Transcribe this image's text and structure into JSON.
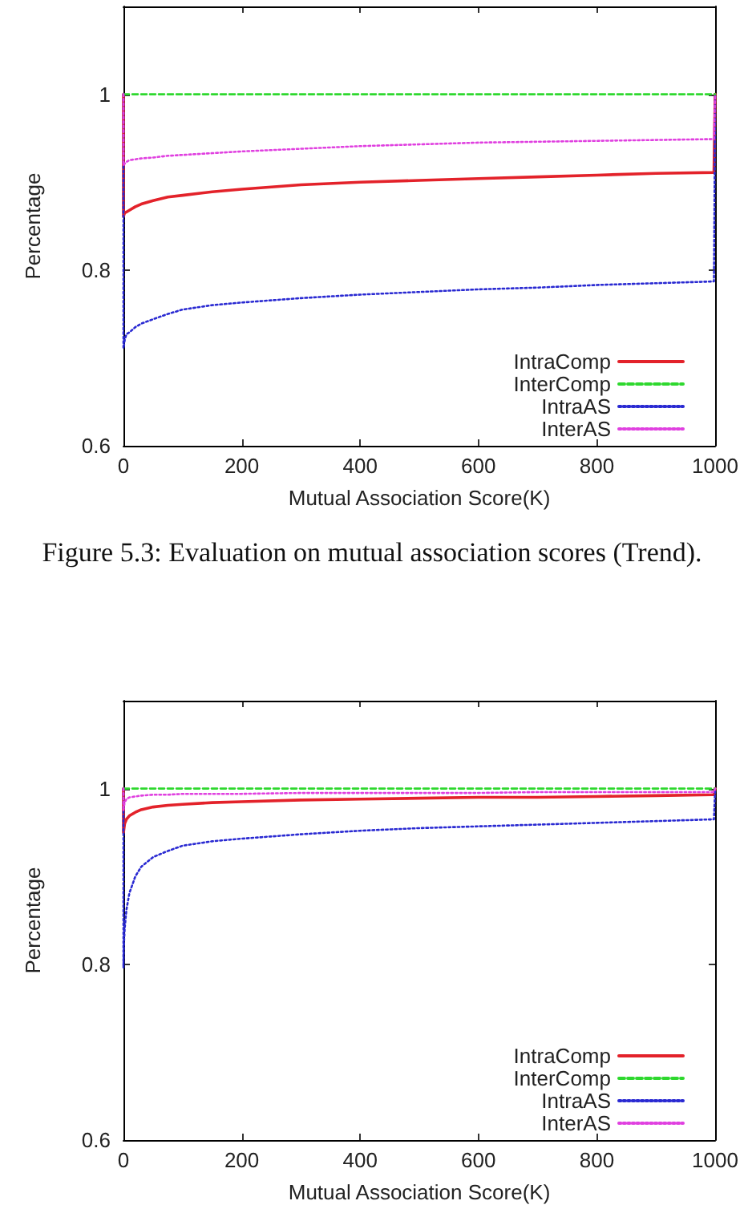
{
  "chart_data": [
    {
      "type": "line",
      "xlabel": "Mutual Association Score(K)",
      "ylabel": "Percentage",
      "annotations": [
        "Figure 5.3: Evaluation on mutual association scores (Trend)."
      ],
      "xlim": [
        0,
        1000
      ],
      "xticks": [
        0,
        200,
        400,
        600,
        800,
        1000
      ],
      "ylim": [
        0.6,
        1.1
      ],
      "yticks": [
        0.6,
        0.8,
        1
      ],
      "grid": false,
      "legend": "bottom right",
      "marker": "none",
      "series": [
        {
          "name": "IntraComp",
          "color": "#e3222a",
          "line_style": "solid",
          "x": [
            0,
            0,
            1,
            2,
            5,
            10,
            20,
            30,
            50,
            75,
            100,
            150,
            200,
            300,
            400,
            500,
            600,
            700,
            800,
            900,
            998,
            1000
          ],
          "values": [
            1,
            0.861,
            0.863,
            0.865,
            0.866,
            0.868,
            0.872,
            0.875,
            0.879,
            0.883,
            0.885,
            0.889,
            0.892,
            0.897,
            0.9,
            0.902,
            0.904,
            0.906,
            0.908,
            0.91,
            0.911,
            1
          ]
        },
        {
          "name": "InterComp",
          "color": "#2ed82e",
          "line_style": "dashed",
          "x": [
            0,
            1000
          ],
          "values": [
            1,
            1
          ]
        },
        {
          "name": "IntraAS",
          "color": "#2a2ad2",
          "line_style": "dotted",
          "x": [
            0,
            0,
            1,
            2,
            5,
            10,
            20,
            30,
            50,
            75,
            100,
            150,
            200,
            300,
            400,
            500,
            600,
            700,
            800,
            900,
            998,
            1000
          ],
          "values": [
            1,
            0.711,
            0.715,
            0.72,
            0.727,
            0.729,
            0.735,
            0.739,
            0.744,
            0.75,
            0.755,
            0.76,
            0.763,
            0.768,
            0.772,
            0.775,
            0.778,
            0.78,
            0.783,
            0.785,
            0.787,
            1
          ]
        },
        {
          "name": "InterAS",
          "color": "#e040e0",
          "line_style": "dotted",
          "x": [
            0,
            0,
            1,
            2,
            5,
            10,
            20,
            30,
            50,
            75,
            100,
            150,
            200,
            300,
            400,
            500,
            600,
            700,
            800,
            900,
            998,
            1000
          ],
          "values": [
            1,
            0.919,
            0.92,
            0.921,
            0.923,
            0.925,
            0.926,
            0.927,
            0.928,
            0.93,
            0.931,
            0.933,
            0.935,
            0.938,
            0.941,
            0.943,
            0.945,
            0.946,
            0.947,
            0.948,
            0.949,
            1
          ]
        }
      ]
    },
    {
      "type": "line",
      "xlabel": "Mutual Association Score(K)",
      "ylabel": "Percentage",
      "xlim": [
        0,
        1000
      ],
      "xticks": [
        0,
        200,
        400,
        600,
        800,
        1000
      ],
      "ylim": [
        0.6,
        1.1
      ],
      "yticks": [
        0.6,
        0.8,
        1
      ],
      "grid": false,
      "legend": "bottom right",
      "marker": "none",
      "series": [
        {
          "name": "IntraComp",
          "color": "#e3222a",
          "line_style": "solid",
          "x": [
            0,
            0,
            1,
            2,
            5,
            10,
            20,
            30,
            50,
            75,
            100,
            150,
            200,
            300,
            400,
            500,
            600,
            700,
            800,
            900,
            998,
            1000
          ],
          "values": [
            1,
            0.95,
            0.955,
            0.96,
            0.965,
            0.969,
            0.973,
            0.976,
            0.979,
            0.981,
            0.982,
            0.984,
            0.985,
            0.987,
            0.988,
            0.989,
            0.99,
            0.99,
            0.991,
            0.992,
            0.993,
            1
          ]
        },
        {
          "name": "InterComp",
          "color": "#2ed82e",
          "line_style": "dashed",
          "x": [
            0,
            1000
          ],
          "values": [
            1,
            1
          ]
        },
        {
          "name": "IntraAS",
          "color": "#2a2ad2",
          "line_style": "dotted",
          "x": [
            0,
            0,
            1,
            2,
            5,
            10,
            20,
            30,
            50,
            75,
            100,
            150,
            200,
            300,
            400,
            500,
            600,
            700,
            800,
            900,
            998,
            1000
          ],
          "values": [
            1,
            0.796,
            0.826,
            0.84,
            0.862,
            0.881,
            0.9,
            0.911,
            0.922,
            0.929,
            0.935,
            0.94,
            0.943,
            0.948,
            0.952,
            0.955,
            0.957,
            0.959,
            0.961,
            0.963,
            0.965,
            1
          ]
        },
        {
          "name": "InterAS",
          "color": "#e040e0",
          "line_style": "dotted",
          "x": [
            0,
            0,
            1,
            2,
            5,
            10,
            20,
            30,
            50,
            75,
            100,
            150,
            200,
            300,
            400,
            500,
            600,
            700,
            800,
            900,
            998,
            1000
          ],
          "values": [
            1,
            0.975,
            0.98,
            0.984,
            0.988,
            0.99,
            0.991,
            0.992,
            0.993,
            0.993,
            0.994,
            0.994,
            0.994,
            0.995,
            0.995,
            0.995,
            0.995,
            0.996,
            0.996,
            0.996,
            0.996,
            1
          ]
        }
      ]
    }
  ]
}
